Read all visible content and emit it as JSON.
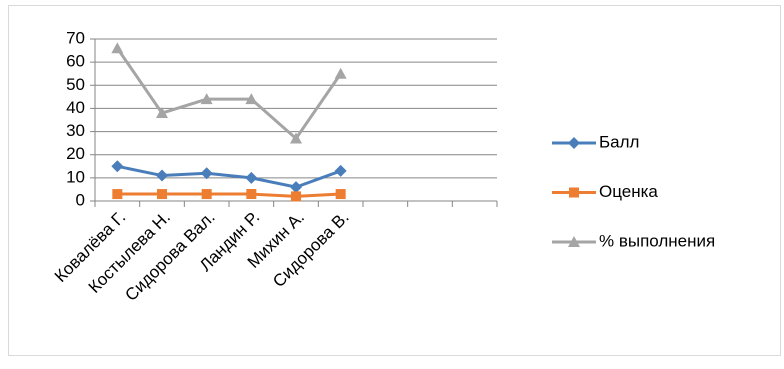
{
  "chart_data": {
    "type": "line",
    "categories": [
      "Ковалёва Г.",
      "Костылева Н.",
      "Сидорова Вал.",
      "Ландин Р.",
      "Михин А.",
      "Сидорова В.",
      null,
      null,
      null
    ],
    "series": [
      {
        "name": "Балл",
        "color": "#4a7ebb",
        "marker": "diamond",
        "values": [
          15,
          11,
          12,
          10,
          6,
          13,
          null,
          null,
          null
        ]
      },
      {
        "name": "Оценка",
        "color": "#ed7d31",
        "marker": "square",
        "values": [
          3,
          3,
          3,
          3,
          2,
          3,
          null,
          null,
          null
        ]
      },
      {
        "name": "% выполнения",
        "color": "#a5a5a5",
        "marker": "triangle",
        "values": [
          66,
          38,
          44,
          44,
          27,
          55,
          null,
          null,
          null
        ]
      }
    ],
    "ylim": [
      0,
      70
    ],
    "yticks": [
      0,
      10,
      20,
      30,
      40,
      50,
      60,
      70
    ],
    "grid": true,
    "legend": "right"
  }
}
